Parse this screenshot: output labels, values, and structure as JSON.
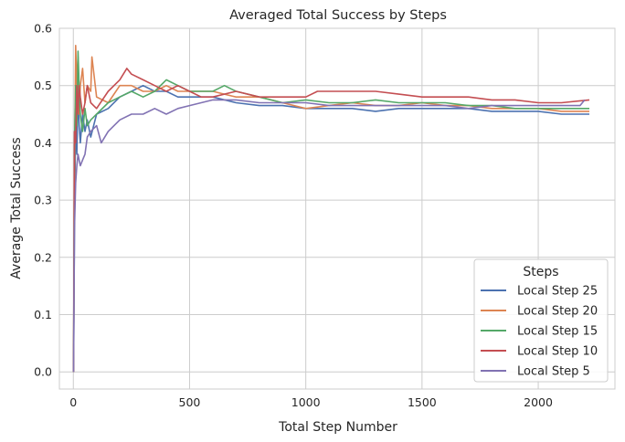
{
  "chart_data": {
    "type": "line",
    "title": "Averaged Total Success by Steps",
    "xlabel": "Total Step Number",
    "ylabel": "Average Total Success",
    "xlim": [
      -60,
      2330
    ],
    "ylim": [
      -0.03,
      0.6
    ],
    "xticks": [
      0,
      500,
      1000,
      1500,
      2000
    ],
    "yticks": [
      0.0,
      0.1,
      0.2,
      0.3,
      0.4,
      0.5,
      0.6
    ],
    "xtick_labels": [
      "0",
      "500",
      "1000",
      "1500",
      "2000"
    ],
    "ytick_labels": [
      "0.0",
      "0.1",
      "0.2",
      "0.3",
      "0.4",
      "0.5",
      "0.6"
    ],
    "grid": true,
    "legend": {
      "title": "Steps",
      "placement": "lower-right"
    },
    "series": [
      {
        "name": "Local Step 25",
        "color": "#4c72b0",
        "x": [
          1,
          5,
          10,
          15,
          20,
          25,
          30,
          40,
          50,
          60,
          75,
          100,
          150,
          200,
          250,
          300,
          350,
          400,
          450,
          500,
          550,
          600,
          700,
          800,
          900,
          1000,
          1100,
          1200,
          1300,
          1400,
          1500,
          1600,
          1700,
          1800,
          1900,
          2000,
          2100,
          2220
        ],
        "y": [
          0.0,
          0.25,
          0.45,
          0.38,
          0.5,
          0.43,
          0.4,
          0.45,
          0.42,
          0.44,
          0.41,
          0.45,
          0.46,
          0.48,
          0.49,
          0.5,
          0.49,
          0.49,
          0.48,
          0.48,
          0.48,
          0.48,
          0.47,
          0.465,
          0.465,
          0.46,
          0.46,
          0.46,
          0.455,
          0.46,
          0.46,
          0.46,
          0.46,
          0.455,
          0.455,
          0.455,
          0.45,
          0.45
        ]
      },
      {
        "name": "Local Step 20",
        "color": "#dd8452",
        "x": [
          1,
          5,
          10,
          15,
          20,
          25,
          30,
          40,
          50,
          60,
          75,
          80,
          100,
          150,
          200,
          250,
          300,
          350,
          400,
          450,
          500,
          550,
          600,
          700,
          800,
          900,
          1000,
          1100,
          1200,
          1300,
          1400,
          1500,
          1600,
          1700,
          1800,
          1900,
          2000,
          2100,
          2220
        ],
        "y": [
          0.0,
          0.33,
          0.57,
          0.5,
          0.55,
          0.45,
          0.5,
          0.53,
          0.47,
          0.5,
          0.49,
          0.55,
          0.48,
          0.47,
          0.5,
          0.5,
          0.49,
          0.49,
          0.5,
          0.49,
          0.49,
          0.49,
          0.49,
          0.48,
          0.48,
          0.47,
          0.46,
          0.465,
          0.47,
          0.465,
          0.465,
          0.47,
          0.465,
          0.465,
          0.46,
          0.46,
          0.46,
          0.455,
          0.455
        ]
      },
      {
        "name": "Local Step 15",
        "color": "#55a868",
        "x": [
          1,
          5,
          10,
          15,
          20,
          25,
          30,
          40,
          50,
          60,
          75,
          100,
          150,
          200,
          250,
          300,
          350,
          400,
          450,
          500,
          550,
          600,
          650,
          700,
          800,
          900,
          1000,
          1100,
          1200,
          1300,
          1400,
          1500,
          1600,
          1700,
          1800,
          1900,
          2000,
          2100,
          2220
        ],
        "y": [
          0.0,
          0.4,
          0.5,
          0.43,
          0.56,
          0.5,
          0.45,
          0.42,
          0.46,
          0.43,
          0.44,
          0.45,
          0.47,
          0.48,
          0.49,
          0.48,
          0.49,
          0.51,
          0.5,
          0.49,
          0.49,
          0.49,
          0.5,
          0.49,
          0.48,
          0.47,
          0.475,
          0.47,
          0.47,
          0.475,
          0.47,
          0.47,
          0.47,
          0.465,
          0.465,
          0.46,
          0.46,
          0.46,
          0.46
        ]
      },
      {
        "name": "Local Step 10",
        "color": "#c44e52",
        "x": [
          1,
          5,
          10,
          15,
          20,
          25,
          30,
          40,
          50,
          60,
          75,
          100,
          150,
          200,
          230,
          250,
          300,
          350,
          400,
          450,
          500,
          550,
          600,
          700,
          800,
          900,
          1000,
          1050,
          1100,
          1200,
          1300,
          1400,
          1500,
          1600,
          1700,
          1800,
          1900,
          2000,
          2100,
          2220
        ],
        "y": [
          0.0,
          0.42,
          0.4,
          0.5,
          0.45,
          0.5,
          0.48,
          0.45,
          0.47,
          0.5,
          0.47,
          0.46,
          0.49,
          0.51,
          0.53,
          0.52,
          0.51,
          0.5,
          0.49,
          0.5,
          0.49,
          0.48,
          0.48,
          0.49,
          0.48,
          0.48,
          0.48,
          0.49,
          0.49,
          0.49,
          0.49,
          0.485,
          0.48,
          0.48,
          0.48,
          0.475,
          0.475,
          0.47,
          0.47,
          0.475
        ]
      },
      {
        "name": "Local Step 5",
        "color": "#8172b3",
        "x": [
          1,
          5,
          10,
          15,
          20,
          25,
          30,
          40,
          50,
          60,
          75,
          100,
          120,
          150,
          200,
          250,
          300,
          350,
          400,
          450,
          500,
          550,
          600,
          700,
          800,
          900,
          1000,
          1100,
          1200,
          1300,
          1400,
          1500,
          1600,
          1700,
          1800,
          1900,
          2000,
          2100,
          2180,
          2200
        ],
        "y": [
          0.0,
          0.25,
          0.33,
          0.36,
          0.38,
          0.37,
          0.36,
          0.37,
          0.38,
          0.41,
          0.42,
          0.43,
          0.4,
          0.42,
          0.44,
          0.45,
          0.45,
          0.46,
          0.45,
          0.46,
          0.465,
          0.47,
          0.475,
          0.475,
          0.47,
          0.47,
          0.47,
          0.465,
          0.465,
          0.465,
          0.465,
          0.465,
          0.465,
          0.46,
          0.465,
          0.465,
          0.465,
          0.465,
          0.465,
          0.475
        ]
      }
    ]
  }
}
